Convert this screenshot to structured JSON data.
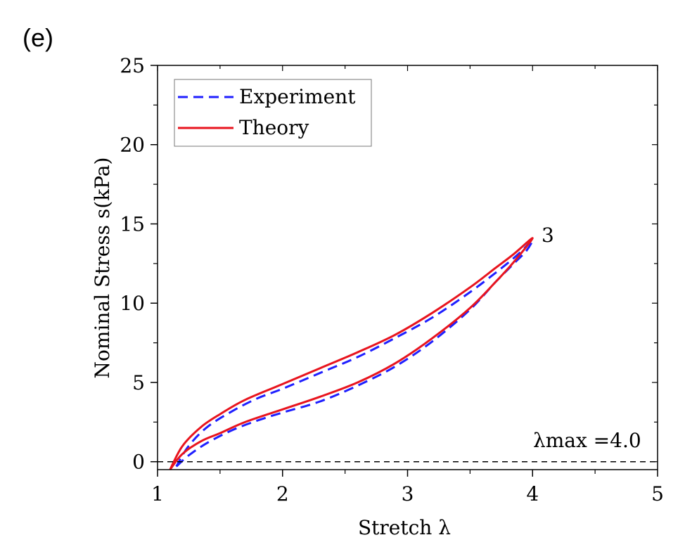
{
  "panel_label": "(e)",
  "chart_data": {
    "type": "line",
    "xlabel": "Stretch λ",
    "ylabel": "Nominal Stress s(kPa)",
    "xlim": [
      1,
      5
    ],
    "ylim": [
      -0.5,
      25
    ],
    "x_ticks": [
      1,
      2,
      3,
      4,
      5
    ],
    "y_ticks": [
      0,
      5,
      10,
      15,
      20,
      25
    ],
    "grid": false,
    "legend_position": "top-left",
    "annotations": [
      {
        "text": "3",
        "x": 4.1,
        "y": 14.0
      },
      {
        "text": "λmax =4.0",
        "x": 4.3,
        "y": 1.2
      }
    ],
    "reference_lines": [
      {
        "y": 0,
        "style": "dashed",
        "color": "#000000"
      }
    ],
    "series": [
      {
        "name": "Experiment",
        "style": "dashed",
        "color": "#1f1fff",
        "x": [
          1.15,
          1.25,
          1.4,
          1.6,
          1.8,
          2.0,
          2.3,
          2.6,
          2.9,
          3.2,
          3.5,
          3.7,
          3.85,
          3.95,
          4.0,
          3.9,
          3.75,
          3.5,
          3.2,
          2.9,
          2.6,
          2.3,
          2.0,
          1.8,
          1.6,
          1.4,
          1.25,
          1.15
        ],
        "y": [
          -0.3,
          0.4,
          1.2,
          2.0,
          2.6,
          3.1,
          3.8,
          4.8,
          6.0,
          7.6,
          9.6,
          11.3,
          12.5,
          13.3,
          14.0,
          13.2,
          12.2,
          10.7,
          9.1,
          7.8,
          6.6,
          5.6,
          4.6,
          4.0,
          3.2,
          2.2,
          1.0,
          -0.3
        ]
      },
      {
        "name": "Theory",
        "style": "solid",
        "color": "#e8141e",
        "x": [
          1.1,
          1.2,
          1.35,
          1.5,
          1.7,
          2.0,
          2.3,
          2.6,
          2.9,
          3.2,
          3.5,
          3.7,
          3.85,
          4.0,
          3.85,
          3.7,
          3.5,
          3.2,
          2.9,
          2.6,
          2.3,
          2.0,
          1.7,
          1.5,
          1.35,
          1.2,
          1.1
        ],
        "y": [
          -0.5,
          0.5,
          1.3,
          1.8,
          2.5,
          3.3,
          4.1,
          5.0,
          6.2,
          7.8,
          9.7,
          11.3,
          12.6,
          14.1,
          13.1,
          12.2,
          11.0,
          9.4,
          8.0,
          6.9,
          5.9,
          4.9,
          3.9,
          3.0,
          2.2,
          1.0,
          -0.5
        ]
      }
    ]
  }
}
